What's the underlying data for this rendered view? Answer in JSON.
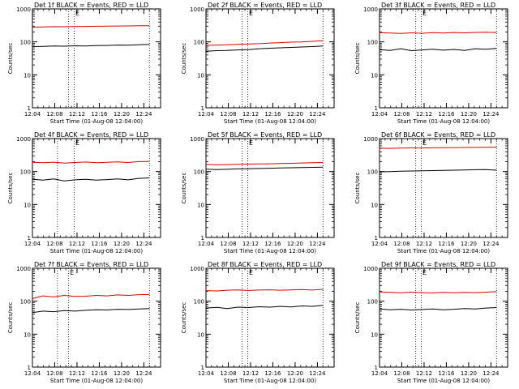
{
  "figure": {
    "background": "#ffffff",
    "events_color": "#000000",
    "lld_color": "#dd0000"
  },
  "chart_data": [
    {
      "type": "line",
      "title": "Det 1f BLACK = Events, RED = LLD",
      "xlabel": "Start Time (01-Aug-08 12:04:00)",
      "ylabel": "Counts/sec",
      "x_ticks": [
        "12:04",
        "12:08",
        "12:12",
        "12:16",
        "12:20",
        "12:24"
      ],
      "y_ticks": [
        "1",
        "10",
        "100",
        "1000"
      ],
      "ylim": [
        1,
        1000
      ],
      "yscale": "log",
      "xrange": [
        "12:04",
        "12:27"
      ],
      "markers": [
        {
          "label": "",
          "time": "12:10:30"
        },
        {
          "label": "E",
          "time": "12:11:30"
        },
        {
          "label": "",
          "time": "12:25:00"
        }
      ],
      "series": [
        {
          "start": "12:04",
          "end": "12:25",
          "values": [
            280,
            285,
            290,
            288,
            292,
            295,
            298,
            300,
            303,
            305,
            308,
            310
          ]
        },
        {
          "start": "12:04",
          "end": "12:25",
          "values": [
            72,
            73,
            75,
            74,
            76,
            75,
            77,
            78,
            80,
            79,
            82,
            84
          ]
        }
      ]
    },
    {
      "type": "line",
      "title": "Det 2f BLACK = Events, RED = LLD",
      "xlabel": "Start Time (01-Aug-08 12:04:00)",
      "ylabel": "Counts/sec",
      "x_ticks": [
        "12:04",
        "12:08",
        "12:12",
        "12:16",
        "12:20",
        "12:24"
      ],
      "y_ticks": [
        "1",
        "10",
        "100",
        "1000"
      ],
      "ylim": [
        1,
        1000
      ],
      "yscale": "log",
      "xrange": [
        "12:04",
        "12:27"
      ],
      "markers": [
        {
          "label": "",
          "time": "12:10:30"
        },
        {
          "label": "E",
          "time": "12:11:30"
        },
        {
          "label": "",
          "time": "12:25:00"
        }
      ],
      "series": [
        {
          "start": "12:04",
          "end": "12:25",
          "values": [
            78,
            80,
            82,
            84,
            86,
            88,
            92,
            95,
            98,
            100,
            104,
            108
          ]
        },
        {
          "start": "12:04",
          "end": "12:25",
          "values": [
            52,
            54,
            55,
            57,
            58,
            62,
            64,
            66,
            68,
            70,
            72,
            75
          ]
        }
      ]
    },
    {
      "type": "line",
      "title": "Det 3f BLACK = Events, RED = LLD",
      "xlabel": "Start Time (01-Aug-08 12:04:00)",
      "ylabel": "Counts/sec",
      "x_ticks": [
        "12:04",
        "12:08",
        "12:12",
        "12:16",
        "12:20",
        "12:24"
      ],
      "y_ticks": [
        "1",
        "10",
        "100",
        "1000"
      ],
      "ylim": [
        1,
        1000
      ],
      "yscale": "log",
      "xrange": [
        "12:04",
        "12:27"
      ],
      "markers": [
        {
          "label": "",
          "time": "12:10:30"
        },
        {
          "label": "E",
          "time": "12:11:30"
        },
        {
          "label": "",
          "time": "12:25:00"
        }
      ],
      "series": [
        {
          "start": "12:04",
          "end": "12:25",
          "values": [
            190,
            185,
            180,
            188,
            182,
            190,
            186,
            192,
            188,
            194,
            196,
            192
          ]
        },
        {
          "start": "12:04",
          "end": "12:25",
          "values": [
            58,
            55,
            62,
            54,
            57,
            60,
            56,
            59,
            55,
            62,
            60,
            63
          ]
        }
      ]
    },
    {
      "type": "line",
      "title": "Det 4f BLACK = Events, RED = LLD",
      "xlabel": "Start Time (01-Aug-08 12:04:00)",
      "ylabel": "Counts/sec",
      "x_ticks": [
        "12:04",
        "12:08",
        "12:12",
        "12:16",
        "12:20",
        "12:24"
      ],
      "y_ticks": [
        "1",
        "10",
        "100",
        "1000"
      ],
      "ylim": [
        1,
        1000
      ],
      "yscale": "log",
      "xrange": [
        "12:04",
        "12:27"
      ],
      "markers": [
        {
          "label": "",
          "time": "12:08:30"
        },
        {
          "label": "E",
          "time": "12:11:30"
        },
        {
          "label": "",
          "time": "12:25:00"
        }
      ],
      "series": [
        {
          "start": "12:04",
          "end": "12:25",
          "values": [
            190,
            185,
            192,
            180,
            188,
            195,
            185,
            190,
            196,
            188,
            200,
            202
          ]
        },
        {
          "start": "12:04",
          "end": "12:25",
          "values": [
            58,
            55,
            60,
            52,
            56,
            58,
            55,
            57,
            60,
            56,
            62,
            64
          ]
        }
      ]
    },
    {
      "type": "line",
      "title": "Det 5f BLACK = Events, RED = LLD",
      "xlabel": "Start Time (01-Aug-08 12:04:00)",
      "ylabel": "Counts/sec",
      "x_ticks": [
        "12:04",
        "12:08",
        "12:12",
        "12:16",
        "12:20",
        "12:24"
      ],
      "y_ticks": [
        "1",
        "10",
        "100",
        "1000"
      ],
      "ylim": [
        1,
        1000
      ],
      "yscale": "log",
      "xrange": [
        "12:04",
        "12:27"
      ],
      "markers": [
        {
          "label": "",
          "time": "12:10:30"
        },
        {
          "label": "E",
          "time": "12:11:30"
        },
        {
          "label": "",
          "time": "12:25:00"
        }
      ],
      "series": [
        {
          "start": "12:04",
          "end": "12:25",
          "values": [
            165,
            160,
            162,
            165,
            168,
            170,
            172,
            175,
            178,
            182,
            185,
            188
          ]
        },
        {
          "start": "12:04",
          "end": "12:25",
          "values": [
            118,
            115,
            117,
            120,
            122,
            124,
            126,
            128,
            130,
            132,
            134,
            136
          ]
        }
      ]
    },
    {
      "type": "line",
      "title": "Det 6f BLACK = Events, RED = LLD",
      "xlabel": "Start Time (01-Aug-08 12:04:00)",
      "ylabel": "Counts/sec",
      "x_ticks": [
        "12:04",
        "12:08",
        "12:12",
        "12:16",
        "12:20",
        "12:24"
      ],
      "y_ticks": [
        "1",
        "10",
        "100",
        "1000"
      ],
      "ylim": [
        1,
        1000
      ],
      "yscale": "log",
      "xrange": [
        "12:04",
        "12:27"
      ],
      "markers": [
        {
          "label": "",
          "time": "12:10:30"
        },
        {
          "label": "E",
          "time": "12:11:30"
        },
        {
          "label": "",
          "time": "12:25:00"
        }
      ],
      "series": [
        {
          "start": "12:04",
          "end": "12:25",
          "values": [
            510,
            505,
            515,
            520,
            518,
            525,
            530,
            528,
            535,
            540,
            545,
            548
          ]
        },
        {
          "start": "12:04",
          "end": "12:25",
          "values": [
            98,
            100,
            102,
            104,
            105,
            107,
            108,
            110,
            112,
            114,
            115,
            110
          ]
        }
      ]
    },
    {
      "type": "line",
      "title": "Det 7f BLACK = Events, RED = LLD",
      "xlabel": "Start Time (01-Aug-08 12:04:00)",
      "ylabel": "Counts/sec",
      "x_ticks": [
        "12:04",
        "12:08",
        "12:12",
        "12:16",
        "12:20",
        "12:24"
      ],
      "y_ticks": [
        "1",
        "10",
        "100",
        "1000"
      ],
      "ylim": [
        1,
        1000
      ],
      "yscale": "log",
      "xrange": [
        "12:04",
        "12:27"
      ],
      "markers": [
        {
          "label": "",
          "time": "12:08:30"
        },
        {
          "label": "E",
          "time": "12:10:30"
        },
        {
          "label": "",
          "time": "12:25:00"
        }
      ],
      "series": [
        {
          "start": "12:04",
          "end": "12:25",
          "values": [
            120,
            145,
            135,
            150,
            140,
            142,
            150,
            145,
            155,
            150,
            158,
            160
          ]
        },
        {
          "start": "12:04",
          "end": "12:25",
          "values": [
            45,
            50,
            48,
            52,
            50,
            53,
            55,
            54,
            57,
            56,
            58,
            60
          ]
        }
      ]
    },
    {
      "type": "line",
      "title": "Det 8f BLACK = Events, RED = LLD",
      "xlabel": "Start Time (01-Aug-08 12:04:00)",
      "ylabel": "Counts/sec",
      "x_ticks": [
        "12:04",
        "12:08",
        "12:12",
        "12:16",
        "12:20",
        "12:24"
      ],
      "y_ticks": [
        "1",
        "10",
        "100",
        "1000"
      ],
      "ylim": [
        1,
        1000
      ],
      "yscale": "log",
      "xrange": [
        "12:04",
        "12:27"
      ],
      "markers": [
        {
          "label": "",
          "time": "12:10:30"
        },
        {
          "label": "E",
          "time": "12:11:30"
        },
        {
          "label": "",
          "time": "12:25:00"
        }
      ],
      "series": [
        {
          "start": "12:04",
          "end": "12:25",
          "values": [
            210,
            205,
            215,
            220,
            212,
            218,
            222,
            215,
            220,
            225,
            218,
            230
          ]
        },
        {
          "start": "12:04",
          "end": "12:25",
          "values": [
            62,
            65,
            60,
            66,
            64,
            68,
            66,
            70,
            67,
            72,
            70,
            75
          ]
        }
      ]
    },
    {
      "type": "line",
      "title": "Det 9f BLACK = Events, RED = LLD",
      "xlabel": "Start Time (01-Aug-08 12:04:00)",
      "ylabel": "Counts/sec",
      "x_ticks": [
        "12:04",
        "12:08",
        "12:12",
        "12:16",
        "12:20",
        "12:24"
      ],
      "y_ticks": [
        "1",
        "10",
        "100",
        "1000"
      ],
      "ylim": [
        1,
        1000
      ],
      "yscale": "log",
      "xrange": [
        "12:04",
        "12:27"
      ],
      "markers": [
        {
          "label": "",
          "time": "12:10:30"
        },
        {
          "label": "E",
          "time": "12:11:30"
        },
        {
          "label": "",
          "time": "12:25:00"
        }
      ],
      "series": [
        {
          "start": "12:04",
          "end": "12:25",
          "values": [
            190,
            185,
            180,
            188,
            182,
            178,
            185,
            180,
            186,
            182,
            188,
            195
          ]
        },
        {
          "start": "12:04",
          "end": "12:25",
          "values": [
            58,
            55,
            57,
            54,
            56,
            58,
            55,
            57,
            60,
            58,
            62,
            64
          ]
        }
      ]
    }
  ]
}
